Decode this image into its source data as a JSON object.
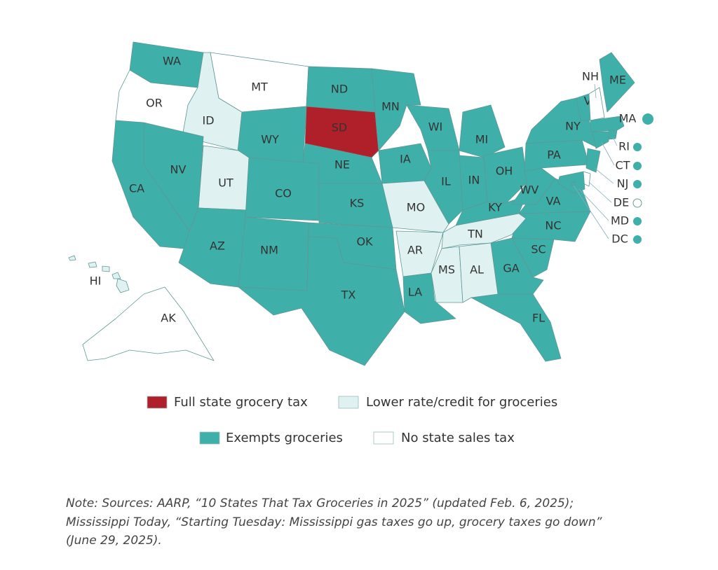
{
  "map": {
    "legend": [
      {
        "label": "Full state grocery tax",
        "color": "#b0202a",
        "states": [
          "SD"
        ]
      },
      {
        "label": "Lower rate/credit for groceries",
        "color": "#dff1f1",
        "states": [
          "ID",
          "UT",
          "MO",
          "AR",
          "TN",
          "MS",
          "AL",
          "HI"
        ]
      },
      {
        "label": "Exempts groceries",
        "color": "#3fafa9",
        "states": [
          "WA",
          "CA",
          "NV",
          "AZ",
          "WY",
          "CO",
          "NM",
          "ND",
          "NE",
          "KS",
          "OK",
          "TX",
          "MN",
          "IA",
          "LA",
          "WI",
          "IL",
          "MI",
          "IN",
          "KY",
          "OH",
          "WV",
          "VA",
          "PA",
          "NY",
          "VT",
          "ME",
          "MA",
          "RI",
          "CT",
          "NJ",
          "MD",
          "DC",
          "NC",
          "SC",
          "GA",
          "FL"
        ]
      },
      {
        "label": "No state sales tax",
        "color": "#ffffff",
        "states": [
          "OR",
          "MT",
          "NH",
          "DE",
          "AK"
        ]
      }
    ],
    "note": [
      "Note: Sources: AARP, “10 States That Tax Groceries in 2025” (updated Feb. 6, 2025);",
      "Mississippi Today, “Starting Tuesday: Mississippi gas taxes go up, grocery taxes go down”",
      "(June 29, 2025)."
    ]
  }
}
